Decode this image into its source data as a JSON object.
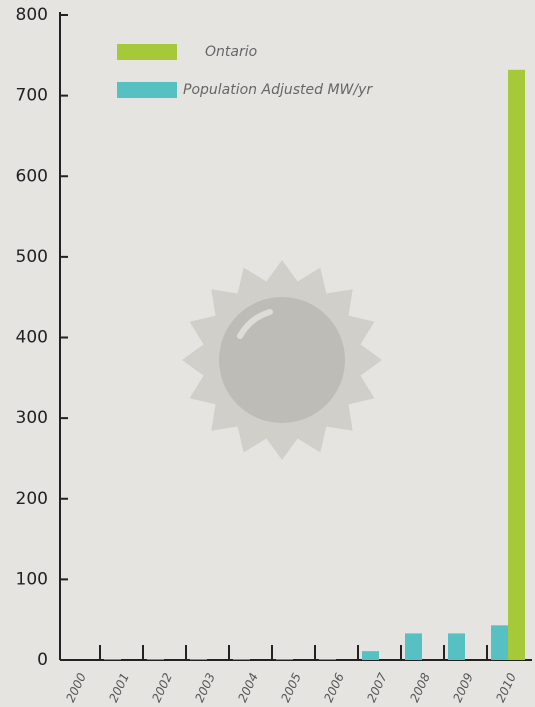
{
  "chart_data": {
    "type": "bar",
    "categories": [
      "2000",
      "2001",
      "2002",
      "2003",
      "2004",
      "2005",
      "2006",
      "2007",
      "2008",
      "2009",
      "2010"
    ],
    "series": [
      {
        "name": "Ontario",
        "color": "#a6c93a",
        "values": [
          0,
          0,
          0,
          0,
          0,
          0,
          0,
          0,
          0,
          0,
          732
        ]
      },
      {
        "name": "Population Adjusted MW/yr",
        "color": "#57c0c2",
        "values": [
          0,
          1,
          1,
          1,
          1,
          1,
          1,
          11,
          33,
          33,
          43
        ]
      }
    ],
    "ylim": [
      0,
      800
    ],
    "yticks": [
      0,
      100,
      200,
      300,
      400,
      500,
      600,
      700,
      800
    ]
  }
}
